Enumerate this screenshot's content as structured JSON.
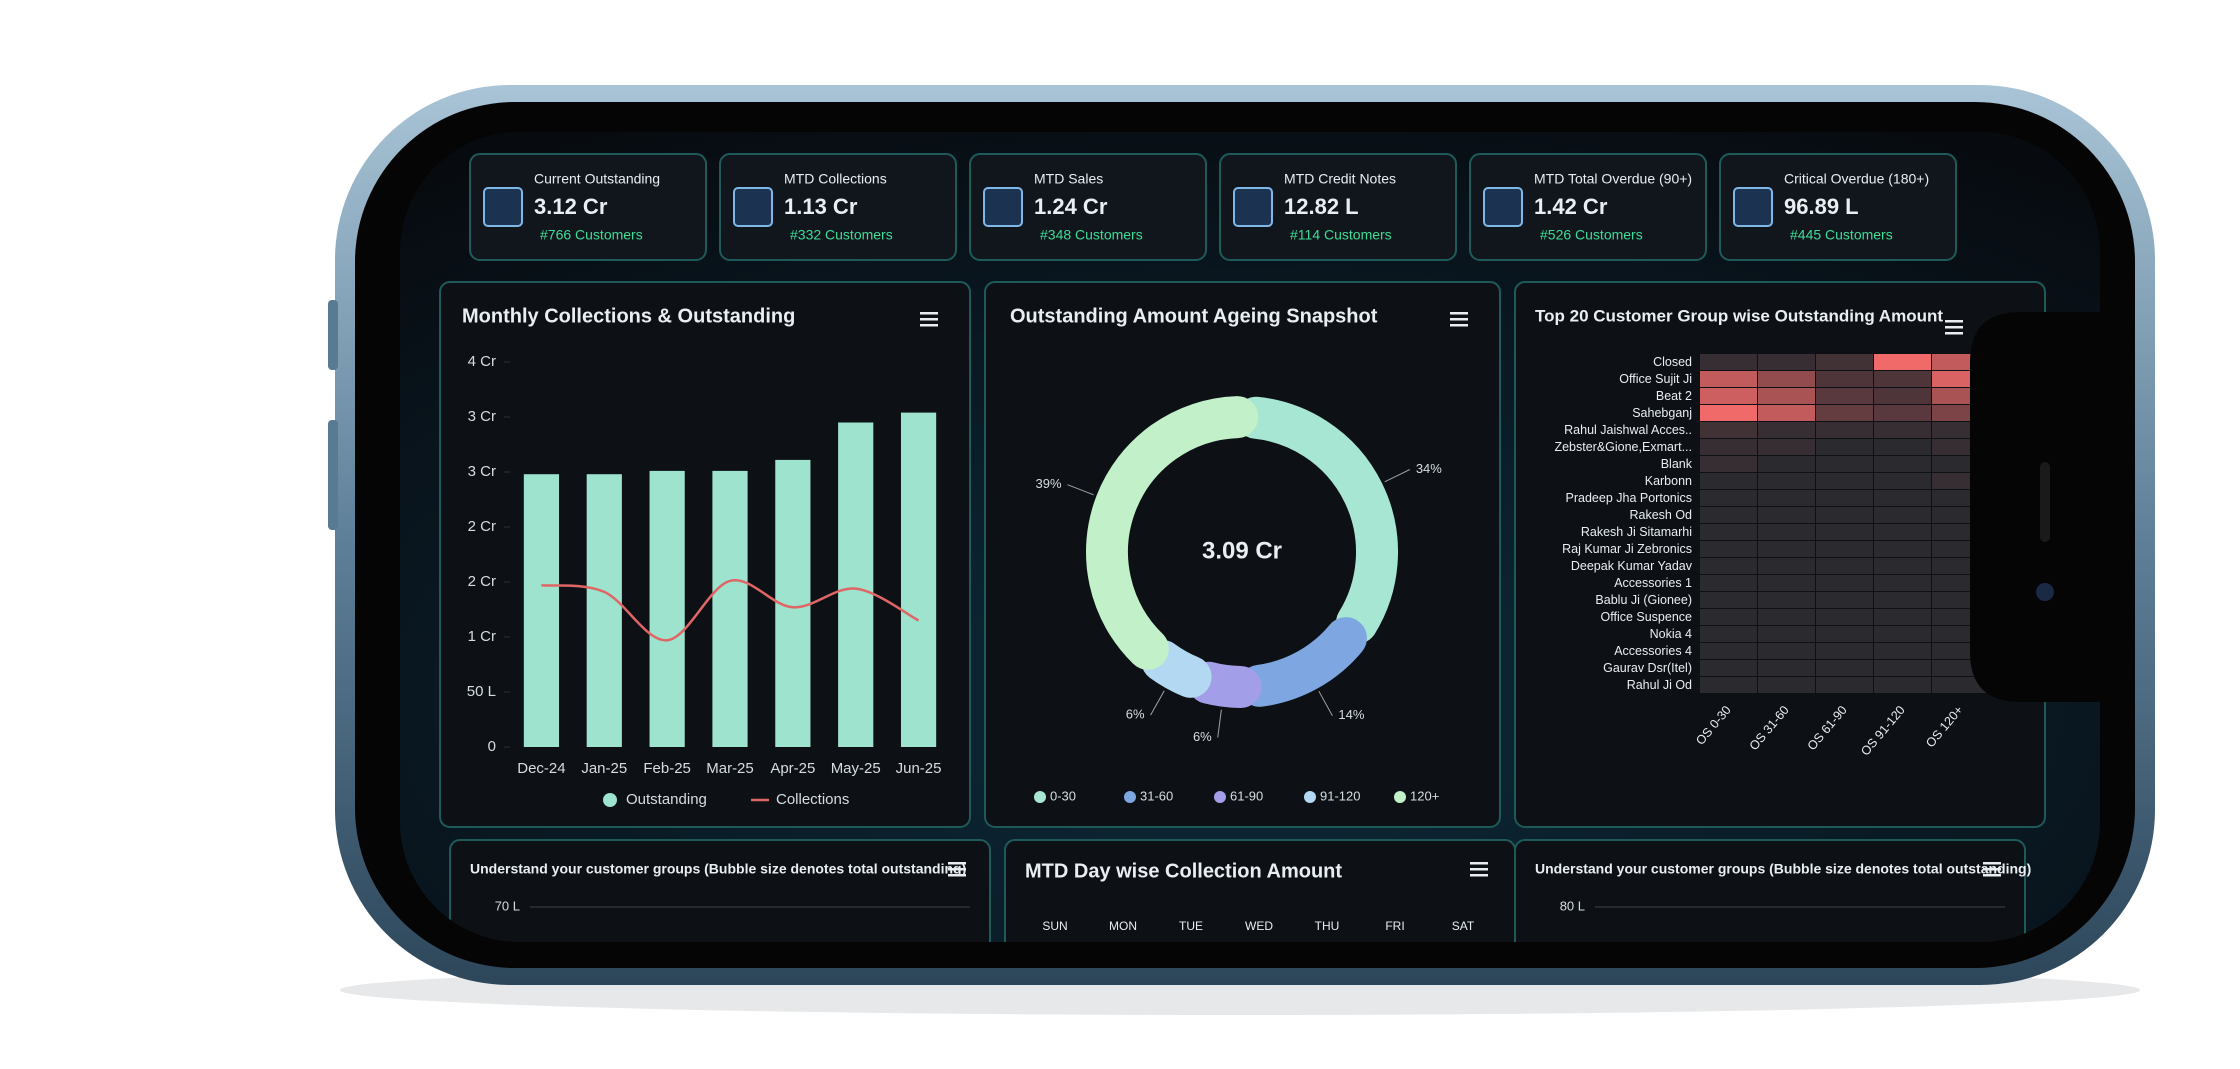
{
  "kpi_cards": [
    {
      "title": "Current Outstanding",
      "value": "3.12 Cr",
      "customers": "#766 Customers"
    },
    {
      "title": "MTD Collections",
      "value": "1.13 Cr",
      "customers": "#332 Customers"
    },
    {
      "title": "MTD Sales",
      "value": "1.24 Cr",
      "customers": "#348 Customers"
    },
    {
      "title": "MTD Credit Notes",
      "value": "12.82 L",
      "customers": "#114 Customers"
    },
    {
      "title": "MTD Total Overdue (90+)",
      "value": "1.42 Cr",
      "customers": "#526 Customers"
    },
    {
      "title": "Critical Overdue (180+)",
      "value": "96.89 L",
      "customers": "#445 Customers"
    }
  ],
  "chart_data": [
    {
      "type": "bar_line",
      "title": "Monthly Collections & Outstanding",
      "categories": [
        "Dec-24",
        "Jan-25",
        "Feb-25",
        "Mar-25",
        "Apr-25",
        "May-25",
        "Jun-25"
      ],
      "series": [
        {
          "name": "Outstanding",
          "type": "bar",
          "color": "#9de3cd",
          "values": [
            248,
            248,
            251,
            251,
            261,
            295,
            304
          ]
        },
        {
          "name": "Collections",
          "type": "line",
          "color": "#e06666",
          "values": [
            147,
            141,
            97,
            151,
            127,
            144,
            115
          ]
        }
      ],
      "ylim": [
        0,
        350
      ],
      "yticks": [
        0,
        {
          "value": 50,
          "label": "50 L"
        },
        {
          "value": 100,
          "label": "1 Cr"
        },
        {
          "value": 150,
          "label": "2 Cr"
        },
        {
          "value": 200,
          "label": "2 Cr"
        },
        {
          "value": 250,
          "label": "3 Cr"
        },
        {
          "value": 300,
          "label": "3 Cr"
        },
        {
          "value": 350,
          "label": "4 Cr"
        }
      ]
    },
    {
      "type": "donut",
      "title": "Outstanding Amount Ageing Snapshot",
      "center_label": "3.09 Cr",
      "categories": [
        "0-30",
        "31-60",
        "61-90",
        "91-120",
        "120+"
      ],
      "values": [
        34,
        14,
        6,
        6,
        39
      ],
      "value_labels": [
        "34%",
        "14%",
        "6%",
        "6%",
        "39%"
      ],
      "colors": [
        "#a8e6d4",
        "#7ea6e0",
        "#a39ee8",
        "#b3d9f2",
        "#c2f0c8"
      ]
    },
    {
      "type": "heatmap",
      "title": "Top 20 Customer Group wise Outstanding Amount",
      "rows": [
        "Closed",
        "Office Sujit Ji",
        "Beat 2",
        "Sahebganj",
        "Rahul Jaishwal Acces..",
        "Zebster&Gione,Exmart...",
        "Blank",
        "Karbonn",
        "Pradeep Jha Portonics",
        "Rakesh Od",
        "Rakesh Ji Sitamarhi",
        "Raj Kumar Ji Zebronics",
        "Deepak Kumar Yadav",
        "Accessories 1",
        "Bablu Ji (Gionee)",
        "Office Suspence",
        "Nokia 4",
        "Accessories 4",
        "Gaurav Dsr(Itel)",
        "Rahul Ji Od"
      ],
      "columns": [
        "OS 0-30",
        "OS 31-60",
        "OS 61-90",
        "OS 91-120",
        "OS 120+"
      ],
      "values": [
        [
          2,
          2,
          3,
          18,
          14
        ],
        [
          14,
          10,
          4,
          4,
          16
        ],
        [
          15,
          12,
          5,
          4,
          12
        ],
        [
          18,
          14,
          6,
          5,
          8
        ],
        [
          3,
          2,
          2,
          2,
          2
        ],
        [
          2,
          2,
          1,
          1,
          2
        ],
        [
          2,
          1,
          1,
          1,
          1
        ],
        [
          1,
          1,
          1,
          1,
          2
        ],
        [
          1,
          1,
          1,
          1,
          1
        ],
        [
          1,
          1,
          1,
          1,
          1
        ],
        [
          1,
          1,
          1,
          1,
          1
        ],
        [
          1,
          1,
          1,
          1,
          1
        ],
        [
          1,
          1,
          1,
          1,
          1
        ],
        [
          1,
          1,
          1,
          1,
          1
        ],
        [
          1,
          1,
          1,
          1,
          1
        ],
        [
          1,
          1,
          1,
          1,
          1
        ],
        [
          1,
          1,
          1,
          1,
          1
        ],
        [
          1,
          1,
          1,
          1,
          1
        ],
        [
          1,
          1,
          1,
          1,
          1
        ],
        [
          1,
          1,
          1,
          1,
          1
        ]
      ],
      "color_scale": [
        "#2a2a2f",
        "#f06a6a"
      ]
    },
    {
      "type": "bubble",
      "title": "Understand your customer groups (Bubble size denotes total outstanding)",
      "yticks": [
        {
          "value": 70,
          "label": "70 L"
        }
      ]
    },
    {
      "type": "bar",
      "title": "MTD Day wise Collection Amount",
      "categories": [
        "SUN",
        "MON",
        "TUE",
        "WED",
        "THU",
        "FRI",
        "SAT"
      ]
    },
    {
      "type": "bubble",
      "title": "Understand your customer groups (Bubble size denotes total outstanding)",
      "yticks": [
        {
          "value": 80,
          "label": "80 L"
        }
      ]
    }
  ]
}
